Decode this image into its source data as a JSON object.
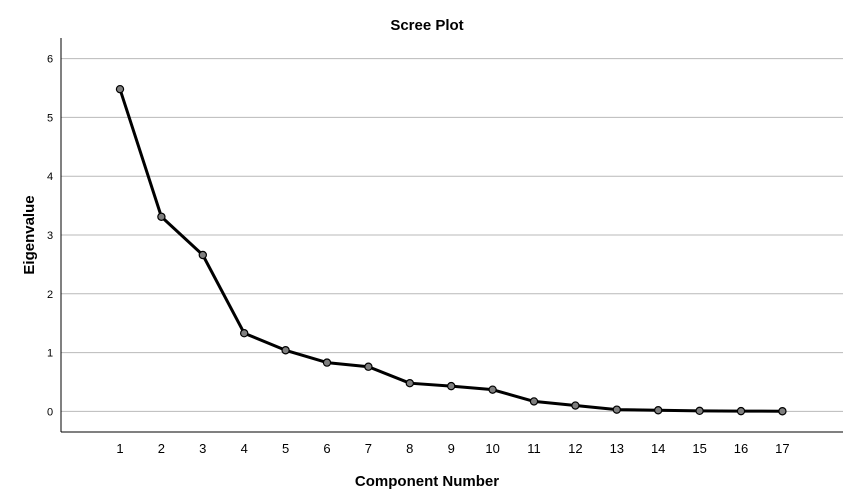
{
  "chart_data": {
    "type": "line",
    "title": "Scree Plot",
    "xlabel": "Component Number",
    "ylabel": "Eigenvalue",
    "x": [
      1,
      2,
      3,
      4,
      5,
      6,
      7,
      8,
      9,
      10,
      11,
      12,
      13,
      14,
      15,
      16,
      17
    ],
    "x_tick_labels": [
      "1",
      "2",
      "3",
      "4",
      "5",
      "6",
      "7",
      "8",
      "9",
      "10",
      "11",
      "12",
      "13",
      "14",
      "15",
      "16",
      "17"
    ],
    "series": [
      {
        "values": [
          5.48,
          3.31,
          2.66,
          1.33,
          1.04,
          0.83,
          0.76,
          0.48,
          0.43,
          0.37,
          0.17,
          0.1,
          0.03,
          0.02,
          0.01,
          0.005,
          0.003
        ]
      }
    ],
    "y_tick_labels": [
      "0",
      "1",
      "2",
      "3",
      "4",
      "5",
      "6"
    ],
    "ylim": [
      -0.35,
      6.35
    ],
    "grid": true,
    "legend": false,
    "colors": {
      "line": "#000000",
      "marker_fill": "#7f7f7f",
      "grid": "#b9b9b9"
    }
  }
}
